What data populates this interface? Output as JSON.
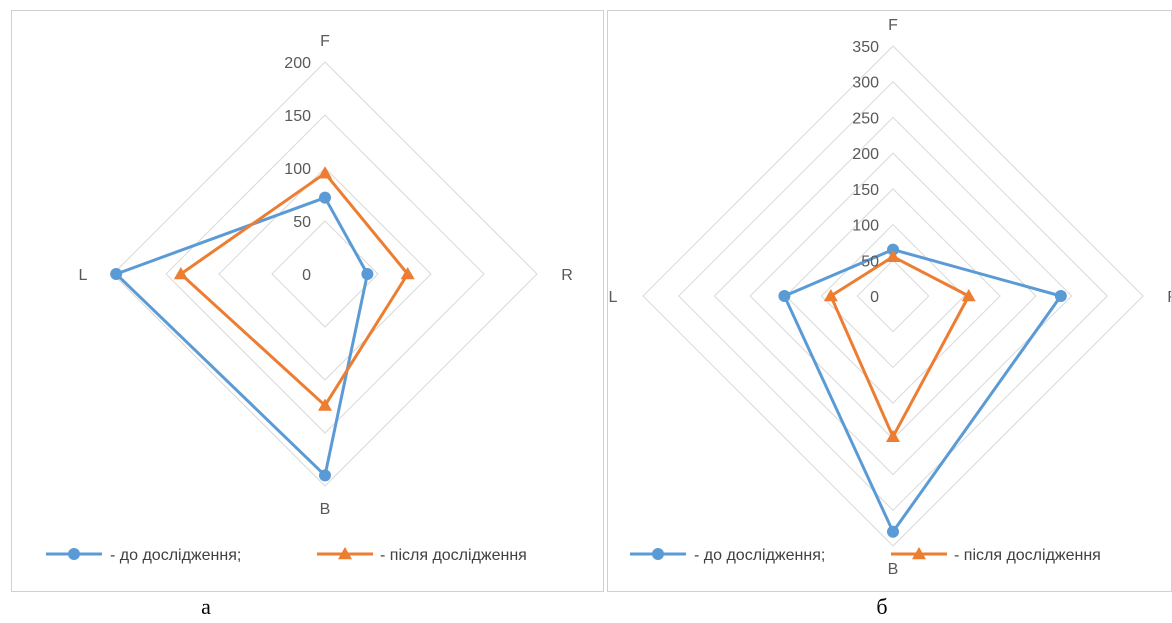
{
  "colors": {
    "before": "#5b9bd5",
    "after": "#ed7d31",
    "grid": "#d9d9d9"
  },
  "chart_data": [
    {
      "type": "radar",
      "panel_label": "а",
      "axes": [
        "F",
        "R",
        "B",
        "L"
      ],
      "rlim": [
        0,
        200
      ],
      "ticks": [
        "0",
        "50",
        "100",
        "150",
        "200"
      ],
      "tick_values": [
        0,
        50,
        100,
        150,
        200
      ],
      "legend_position": "bottom",
      "series": [
        {
          "name": "- до дослідження;",
          "marker": "circle",
          "values": [
            72,
            40,
            190,
            197
          ]
        },
        {
          "name": "- після дослідження",
          "marker": "triangle",
          "values": [
            95,
            78,
            124,
            136
          ]
        }
      ]
    },
    {
      "type": "radar",
      "panel_label": "б",
      "axes": [
        "F",
        "R",
        "B",
        "L"
      ],
      "rlim": [
        0,
        350
      ],
      "ticks": [
        "0",
        "50",
        "100",
        "150",
        "200",
        "250",
        "300",
        "350"
      ],
      "tick_values": [
        0,
        50,
        100,
        150,
        200,
        250,
        300,
        350
      ],
      "legend_position": "bottom",
      "series": [
        {
          "name": "- до дослідження;",
          "marker": "circle",
          "values": [
            65,
            235,
            330,
            152
          ]
        },
        {
          "name": "- після дослідження",
          "marker": "triangle",
          "values": [
            55,
            106,
            197,
            87
          ]
        }
      ]
    }
  ]
}
